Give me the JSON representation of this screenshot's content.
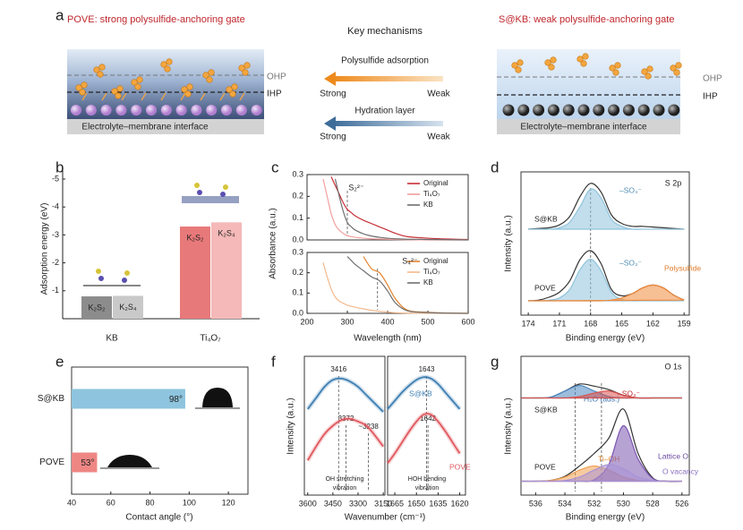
{
  "diagram": {
    "label": "a",
    "left": {
      "title": "POVE: strong polysulfide-anchoring gate",
      "layers": [
        "OHP",
        "IHP"
      ],
      "caption": "Electrolyte–membrane interface"
    },
    "center": {
      "title": "Key mechanisms",
      "mechanisms": [
        {
          "name": "Polysulfide adsorption",
          "from": "Strong",
          "to": "Weak"
        },
        {
          "name": "Hydration layer",
          "from": "Strong",
          "to": "Weak"
        }
      ]
    },
    "right": {
      "title": "S@KB: weak polysulfide-anchoring gate",
      "layers": [
        "OHP",
        "IHP"
      ],
      "caption": "Electrolyte–membrane interface"
    }
  },
  "chart_data": [
    {
      "type": "bar",
      "label": "b",
      "y_label": "Adsorption energy (eV)",
      "categories": [
        "KB",
        "Ti₄O₇"
      ],
      "series": [
        {
          "name": "K₂S₂",
          "colors": [
            "#8c8c8c",
            "#e8797a"
          ],
          "values": [
            -0.8,
            -3.3
          ]
        },
        {
          "name": "K₂S₄",
          "colors": [
            "#c9c9c9",
            "#f4b9b8"
          ],
          "values": [
            -0.82,
            -3.45
          ]
        }
      ],
      "ylim": [
        0,
        -5
      ],
      "yticks": [
        -5,
        -4,
        -3,
        -2,
        -1
      ]
    },
    {
      "type": "line",
      "label": "c",
      "y_label": "Absorbance (a.u.)",
      "annotation": "S₂²⁻",
      "ref_line": 300,
      "x": [
        240,
        250,
        260,
        270,
        280,
        290,
        300,
        310,
        320,
        340,
        360,
        380,
        400,
        420,
        450,
        500,
        550,
        600
      ],
      "series": [
        {
          "name": "Original",
          "color": "#c62f36",
          "values": [
            null,
            null,
            0.29,
            0.25,
            0.21,
            0.17,
            0.14,
            0.125,
            0.11,
            0.09,
            0.075,
            0.06,
            0.045,
            0.03,
            0.015,
            0.008,
            0.004,
            0.002
          ]
        },
        {
          "name": "Ti₄O₇",
          "color": "#f0a09e",
          "values": [
            0.28,
            0.2,
            0.12,
            0.07,
            0.045,
            0.03,
            0.02,
            0.015,
            0.012,
            0.008,
            0.005,
            0.004,
            0.003,
            0.002,
            0.001,
            0,
            0,
            0
          ]
        },
        {
          "name": "KB",
          "color": "#6f6f6f",
          "values": [
            null,
            null,
            null,
            0.28,
            0.2,
            0.13,
            0.08,
            0.06,
            0.045,
            0.028,
            0.018,
            0.012,
            0.008,
            0.005,
            0.003,
            0.002,
            0.001,
            0
          ]
        }
      ],
      "xlim": [
        200,
        600
      ],
      "ylim": [
        0,
        0.3
      ],
      "yticks": [
        {
          "value": 0,
          "label": "0.0"
        },
        0.1,
        0.2,
        0.3
      ]
    },
    {
      "type": "line",
      "x_label": "Wavelength (nm)",
      "annotation": "S₄²⁻",
      "ref_line": 375,
      "x": [
        240,
        250,
        260,
        270,
        280,
        290,
        300,
        310,
        320,
        340,
        360,
        380,
        400,
        420,
        450,
        500,
        550,
        600
      ],
      "series": [
        {
          "name": "Original",
          "color": "#e4832c",
          "values": [
            null,
            null,
            null,
            null,
            null,
            null,
            null,
            null,
            null,
            0.28,
            0.22,
            0.2,
            0.14,
            0.07,
            0.015,
            0.005,
            0.002,
            0
          ]
        },
        {
          "name": "Ti₄O₇",
          "color": "#f3b98e",
          "values": [
            0.25,
            0.18,
            0.12,
            0.08,
            0.06,
            0.05,
            0.04,
            0.035,
            0.03,
            0.022,
            0.015,
            0.01,
            0.006,
            0.003,
            0.001,
            0,
            0,
            0
          ]
        },
        {
          "name": "KB",
          "color": "#6f6f6f",
          "values": [
            null,
            null,
            null,
            null,
            null,
            null,
            0.28,
            0.26,
            0.24,
            0.21,
            0.18,
            0.16,
            0.11,
            0.05,
            0.012,
            0.004,
            0.001,
            0
          ]
        }
      ],
      "xlim": [
        200,
        600
      ],
      "xticks": [
        200,
        300,
        400,
        500,
        600
      ],
      "ylim": [
        0,
        0.3
      ],
      "yticks": [
        {
          "value": 0,
          "label": "0.0"
        },
        0.1,
        0.2,
        0.3
      ]
    },
    {
      "type": "line",
      "label": "d",
      "x_label": "Binding energy (eV)",
      "y_label": "Intensity (a.u.)",
      "annotation": "S 2p",
      "ref_line": 168,
      "x": [
        174,
        173,
        172,
        171,
        170,
        169,
        168,
        167,
        166,
        165,
        164,
        163,
        162,
        161,
        160,
        159
      ],
      "series": [
        {
          "name": "S@KB",
          "color": "#333333",
          "values": [
            6.0,
            6.05,
            6.1,
            6.3,
            6.9,
            8.3,
            9.2,
            8.6,
            7.0,
            6.4,
            6.2,
            6.2,
            6.15,
            6.1,
            6.05,
            6.0
          ]
        },
        {
          "name": "–SO₃⁻",
          "color": "#8fc3dc",
          "fill": true,
          "values": [
            6,
            6,
            6,
            6.1,
            6.5,
            7.6,
            8.8,
            8.2,
            6.7,
            6.2,
            6,
            6,
            6,
            6,
            6,
            6
          ]
        },
        {
          "name": "POVE",
          "color": "#333333",
          "values": [
            1.0,
            1.05,
            1.25,
            1.6,
            2.4,
            3.9,
            4.5,
            3.6,
            1.8,
            1.35,
            1.5,
            1.9,
            2.1,
            1.9,
            1.4,
            1.05
          ]
        },
        {
          "name": "–SO₃⁻",
          "color": "#8fc3dc",
          "fill": true,
          "values": [
            1,
            1,
            1.05,
            1.2,
            1.8,
            3.2,
            3.9,
            3.1,
            1.6,
            1.1,
            1,
            1,
            1,
            1,
            1,
            1
          ]
        },
        {
          "name": "Polysulfide",
          "color": "#f08a3c",
          "fill": true,
          "values": [
            1,
            1,
            1,
            1,
            1,
            1,
            1,
            1,
            1.05,
            1.2,
            1.5,
            1.9,
            2.1,
            1.9,
            1.4,
            1.05
          ]
        }
      ],
      "xlim": [
        174.7,
        158.5
      ],
      "xticks": [
        174,
        171,
        168,
        165,
        162,
        159
      ],
      "ylim": [
        0,
        10
      ]
    },
    {
      "type": "barh",
      "label": "e",
      "x_label": "Contact angle (°)",
      "categories": [
        "S@KB",
        "POVE"
      ],
      "values": [
        98,
        53
      ],
      "value_labels": [
        "98°",
        "53°"
      ],
      "colors": [
        "#8ec4de",
        "#ee8684"
      ],
      "xlim": [
        40,
        130
      ],
      "xticks": [
        40,
        60,
        80,
        100,
        120
      ]
    },
    {
      "type": "line",
      "label": "f",
      "y_label": "Intensity (a.u.)",
      "note": [
        "OH stretching",
        "vibration"
      ],
      "peak_lines": [
        3416,
        3372,
        {
          "value": 3238,
          "label": "~3238"
        }
      ],
      "x": [
        3600,
        3550,
        3500,
        3450,
        3400,
        3350,
        3300,
        3250,
        3200,
        3150
      ],
      "series": [
        {
          "color": "#3e7fb2",
          "values": [
            6.2,
            7.0,
            7.8,
            8.3,
            8.4,
            8.2,
            7.8,
            7.2,
            6.6,
            6.0
          ]
        },
        {
          "color": "#e0595f",
          "values": [
            2.5,
            3.5,
            4.4,
            5.0,
            5.4,
            5.5,
            5.3,
            5.0,
            4.3,
            3.5
          ]
        }
      ],
      "xlim": [
        3620,
        3140
      ],
      "xticks": [
        3600,
        3450,
        3300,
        3150
      ],
      "ylim": [
        0,
        10
      ]
    },
    {
      "type": "line",
      "x_label": "Wavenumber (cm⁻¹)",
      "note": [
        "HOH bending",
        "vibration"
      ],
      "peak_lines": [
        1643,
        1642
      ],
      "x": [
        1670,
        1665,
        1660,
        1655,
        1650,
        1645,
        1640,
        1635,
        1630,
        1625,
        1620
      ],
      "series": [
        {
          "name": "S@KB",
          "color": "#3e7fb2",
          "values": [
            6.2,
            6.8,
            7.4,
            7.9,
            8.3,
            8.5,
            8.4,
            8.0,
            7.4,
            6.8,
            6.2
          ]
        },
        {
          "name": "POVE",
          "color": "#e0595f",
          "values": [
            2.3,
            3.0,
            3.8,
            4.6,
            5.3,
            5.8,
            5.8,
            5.3,
            4.6,
            3.8,
            3.0
          ]
        }
      ],
      "xlim": [
        1670,
        1616
      ],
      "xticks": [
        1665,
        1650,
        1635,
        1620
      ],
      "ylim": [
        0,
        10
      ]
    },
    {
      "type": "line",
      "label": "g",
      "x_label": "Binding energy (eV)",
      "y_label": "Intensity (a.u.)",
      "annotation": "O 1s",
      "ref_lines": [
        533.3,
        531.5
      ],
      "x": [
        537,
        536,
        535,
        534,
        533,
        532,
        531,
        530,
        529,
        528,
        527,
        526
      ],
      "series": [
        {
          "name": "S@KB",
          "color": "#333333",
          "values": [
            7,
            7,
            7.05,
            7.5,
            8.0,
            7.85,
            7.6,
            7.2,
            7,
            7,
            7,
            7
          ]
        },
        {
          "name": "H₂O (ads.)",
          "color": "#4a86c0",
          "fill": true,
          "values": [
            7,
            7,
            7.05,
            7.5,
            7.9,
            7.5,
            7.1,
            7,
            7,
            7,
            7,
            7
          ]
        },
        {
          "name": "–SO₃⁻",
          "color": "#d9534f",
          "fill": true,
          "values": [
            7,
            7,
            7,
            7,
            7.1,
            7.35,
            7.5,
            7.2,
            7,
            7,
            7,
            7
          ]
        },
        {
          "name": "POVE",
          "color": "#333333",
          "values": [
            1.0,
            1.0,
            1.05,
            1.35,
            2.1,
            3.0,
            4.1,
            6.2,
            3.0,
            1.25,
            1.0,
            1.0
          ]
        },
        {
          "name": "Ti–OH",
          "color": "#f0a050",
          "fill": true,
          "values": [
            1,
            1,
            1.05,
            1.3,
            1.8,
            2.1,
            1.8,
            1.3,
            1.05,
            1,
            1,
            1
          ]
        },
        {
          "name": "Lattice O",
          "color": "#7b55b0",
          "fill": true,
          "values": [
            1,
            1,
            1,
            1,
            1,
            1.1,
            2.2,
            5.0,
            2.6,
            1.2,
            1,
            1
          ]
        },
        {
          "name": "O vacancy",
          "color": "#a993d6",
          "fill": true,
          "values": [
            1,
            1,
            1,
            1.05,
            1.3,
            1.8,
            2.2,
            1.9,
            1.3,
            1.05,
            1,
            1
          ]
        }
      ],
      "xlim": [
        537,
        525.5
      ],
      "xticks": [
        536,
        534,
        532,
        530,
        528,
        526
      ],
      "ylim": [
        0,
        10
      ]
    }
  ]
}
